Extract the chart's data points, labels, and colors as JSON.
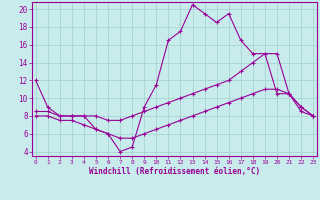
{
  "background_color": "#c8ecec",
  "line_color": "#990099",
  "grid_color": "#a0d0d0",
  "xlabel": "Windchill (Refroidissement éolien,°C)",
  "xlabel_color": "#990099",
  "tick_color": "#990099",
  "ylim": [
    3.5,
    20.8
  ],
  "xlim": [
    -0.3,
    23.3
  ],
  "yticks": [
    4,
    6,
    8,
    10,
    12,
    14,
    16,
    18,
    20
  ],
  "xticks": [
    0,
    1,
    2,
    3,
    4,
    5,
    6,
    7,
    8,
    9,
    10,
    11,
    12,
    13,
    14,
    15,
    16,
    17,
    18,
    19,
    20,
    21,
    22,
    23
  ],
  "line1_x": [
    0,
    1,
    2,
    3,
    4,
    5,
    6,
    7,
    8,
    9,
    10,
    11,
    12,
    13,
    14,
    15,
    16,
    17,
    18,
    19,
    20,
    21,
    22,
    23
  ],
  "line1_y": [
    12,
    9,
    8,
    8,
    8,
    6.5,
    6,
    4,
    4.5,
    9,
    11.5,
    16.5,
    17.5,
    20.5,
    19.5,
    18.5,
    19.5,
    16.5,
    15,
    15,
    10.5,
    10.5,
    9,
    8
  ],
  "line2_x": [
    0,
    1,
    2,
    3,
    4,
    5,
    6,
    7,
    8,
    9,
    10,
    11,
    12,
    13,
    14,
    15,
    16,
    17,
    18,
    19,
    20,
    21,
    22,
    23
  ],
  "line2_y": [
    8.5,
    8.5,
    8,
    8,
    8,
    8,
    7.5,
    7.5,
    8,
    8.5,
    9,
    9.5,
    10,
    10.5,
    11,
    11.5,
    12,
    13,
    14,
    15,
    15,
    10.5,
    9,
    8
  ],
  "line3_x": [
    0,
    1,
    2,
    3,
    4,
    5,
    6,
    7,
    8,
    9,
    10,
    11,
    12,
    13,
    14,
    15,
    16,
    17,
    18,
    19,
    20,
    21,
    22,
    23
  ],
  "line3_y": [
    8,
    8,
    7.5,
    7.5,
    7,
    6.5,
    6,
    5.5,
    5.5,
    6,
    6.5,
    7,
    7.5,
    8,
    8.5,
    9,
    9.5,
    10,
    10.5,
    11,
    11,
    10.5,
    8.5,
    8
  ]
}
